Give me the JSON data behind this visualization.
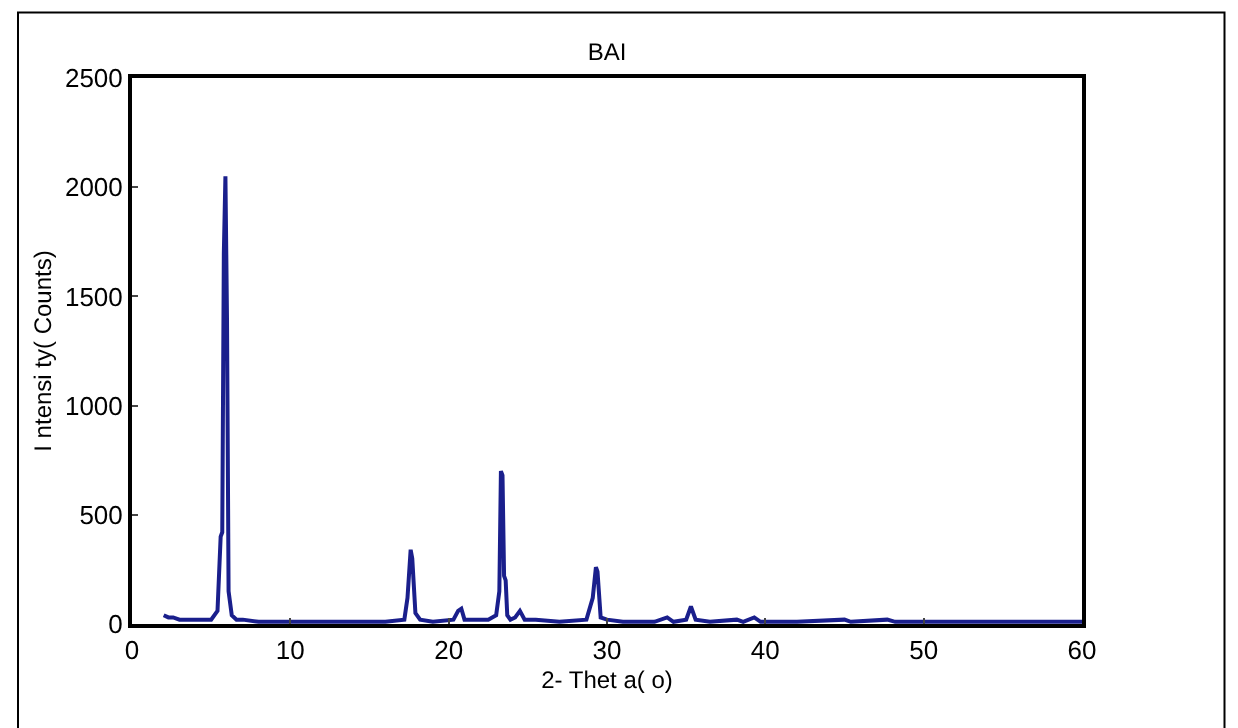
{
  "chart_data": {
    "type": "line",
    "title": "BAI",
    "xlabel": "2- Thet a( o)",
    "ylabel": "I ntensi ty( Counts)",
    "x": [
      2.0,
      2.3,
      2.6,
      3.0,
      3.5,
      4.0,
      4.5,
      5.0,
      5.4,
      5.6,
      5.7,
      5.8,
      5.9,
      6.0,
      6.1,
      6.3,
      6.6,
      7.0,
      8.0,
      10.0,
      12.0,
      14.0,
      16.0,
      17.2,
      17.4,
      17.6,
      17.7,
      17.9,
      18.2,
      19.0,
      20.3,
      20.6,
      20.8,
      21.0,
      21.5,
      22.5,
      23.0,
      23.2,
      23.3,
      23.4,
      23.5,
      23.6,
      23.7,
      23.9,
      24.2,
      24.5,
      24.8,
      25.5,
      27.0,
      28.7,
      29.1,
      29.3,
      29.4,
      29.6,
      30.0,
      31.0,
      33.0,
      33.8,
      34.2,
      35.0,
      35.3,
      35.6,
      36.5,
      38.2,
      38.6,
      39.3,
      39.7,
      42.0,
      45.0,
      45.4,
      47.7,
      48.2,
      50.0,
      54.0,
      57.0,
      60.0
    ],
    "series": [
      {
        "color": "#1a1f8c",
        "values": [
          40,
          30,
          30,
          20,
          20,
          20,
          20,
          20,
          60,
          400,
          420,
          1700,
          2050,
          1400,
          150,
          40,
          20,
          20,
          10,
          10,
          10,
          10,
          10,
          20,
          120,
          340,
          300,
          50,
          20,
          10,
          20,
          60,
          70,
          20,
          20,
          20,
          40,
          150,
          700,
          680,
          220,
          200,
          40,
          20,
          30,
          60,
          20,
          20,
          10,
          20,
          120,
          260,
          240,
          30,
          20,
          10,
          10,
          30,
          10,
          20,
          80,
          20,
          10,
          20,
          10,
          30,
          10,
          10,
          20,
          10,
          20,
          10,
          10,
          10,
          10,
          10
        ]
      }
    ],
    "xlim": [
      0,
      60
    ],
    "ylim": [
      0,
      2500
    ],
    "xticks": [
      0,
      10,
      20,
      30,
      40,
      50,
      60
    ],
    "yticks": [
      0,
      500,
      1000,
      1500,
      2000,
      2500
    ],
    "marker": "none",
    "line_style": "solid"
  }
}
